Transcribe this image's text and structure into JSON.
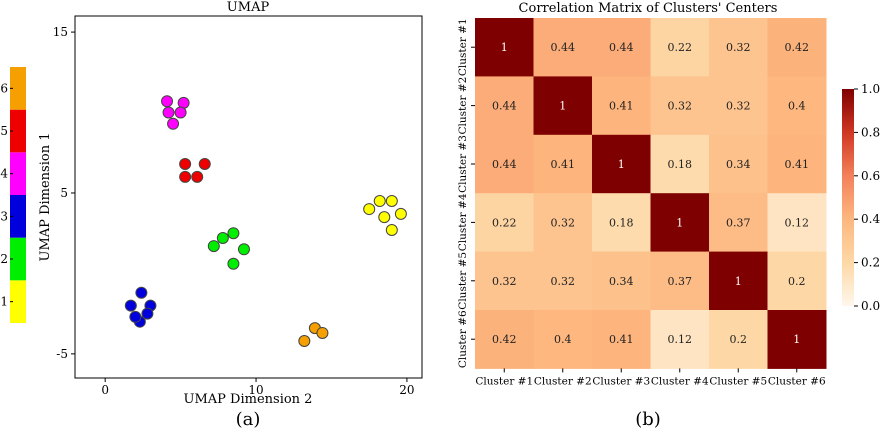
{
  "colors": {
    "cluster": [
      "#ffff00",
      "#00ee00",
      "#0000dd",
      "#ff00ff",
      "#ee0000",
      "#f5a000"
    ]
  },
  "colorbar_left": {
    "labels": [
      "1",
      "2",
      "3",
      "4",
      "5",
      "6"
    ]
  },
  "panel_labels": {
    "a": "(a)",
    "b": "(b)"
  },
  "chart_data": [
    {
      "type": "scatter",
      "title": "UMAP",
      "xlabel": "UMAP Dimension 2",
      "ylabel": "UMAP Dimension 1",
      "xlim": [
        -2,
        21
      ],
      "ylim": [
        -6.5,
        16
      ],
      "xticks": [
        0,
        10,
        20
      ],
      "yticks": [
        -5,
        5,
        15
      ],
      "grid": false,
      "series": [
        {
          "cluster": 1,
          "points": [
            [
              17.5,
              4.0
            ],
            [
              18.2,
              4.5
            ],
            [
              19.0,
              4.5
            ],
            [
              18.5,
              3.5
            ],
            [
              19.6,
              3.7
            ],
            [
              19.0,
              2.7
            ]
          ]
        },
        {
          "cluster": 2,
          "points": [
            [
              7.2,
              1.7
            ],
            [
              7.8,
              2.2
            ],
            [
              8.5,
              2.5
            ],
            [
              9.2,
              1.5
            ],
            [
              8.5,
              0.6
            ]
          ]
        },
        {
          "cluster": 3,
          "points": [
            [
              2.4,
              -1.2
            ],
            [
              1.7,
              -2.0
            ],
            [
              3.0,
              -2.0
            ],
            [
              2.8,
              -2.5
            ],
            [
              2.3,
              -3.0
            ],
            [
              2.0,
              -2.7
            ]
          ]
        },
        {
          "cluster": 4,
          "points": [
            [
              4.1,
              10.7
            ],
            [
              5.2,
              10.6
            ],
            [
              4.2,
              10.0
            ],
            [
              5.0,
              10.0
            ],
            [
              4.5,
              9.3
            ]
          ]
        },
        {
          "cluster": 5,
          "points": [
            [
              5.3,
              6.8
            ],
            [
              6.6,
              6.8
            ],
            [
              5.3,
              6.0
            ],
            [
              6.1,
              6.0
            ]
          ]
        },
        {
          "cluster": 6,
          "points": [
            [
              13.9,
              -3.4
            ],
            [
              14.4,
              -3.7
            ],
            [
              13.2,
              -4.2
            ]
          ]
        }
      ]
    },
    {
      "type": "heatmap",
      "title": "Correlation Matrix of Clusters' Centers",
      "rows": [
        "Cluster #1",
        "Cluster #2",
        "Cluster #3",
        "Cluster #4",
        "Cluster #5",
        "Cluster #6"
      ],
      "cols": [
        "Cluster #1",
        "Cluster #2",
        "Cluster #3",
        "Cluster #4",
        "Cluster #5",
        "Cluster #6"
      ],
      "values": [
        [
          1,
          0.44,
          0.44,
          0.22,
          0.32,
          0.42
        ],
        [
          0.44,
          1,
          0.41,
          0.32,
          0.32,
          0.4
        ],
        [
          0.44,
          0.41,
          1,
          0.18,
          0.34,
          0.41
        ],
        [
          0.22,
          0.32,
          0.18,
          1,
          0.37,
          0.12
        ],
        [
          0.32,
          0.32,
          0.34,
          0.37,
          1,
          0.2
        ],
        [
          0.42,
          0.4,
          0.41,
          0.12,
          0.2,
          1
        ]
      ],
      "colorbar": {
        "ticks": [
          "0.0",
          "0.2",
          "0.4",
          "0.6",
          "0.8",
          "1.0"
        ],
        "range": [
          0,
          1
        ],
        "colormap": "OrRd"
      }
    }
  ]
}
